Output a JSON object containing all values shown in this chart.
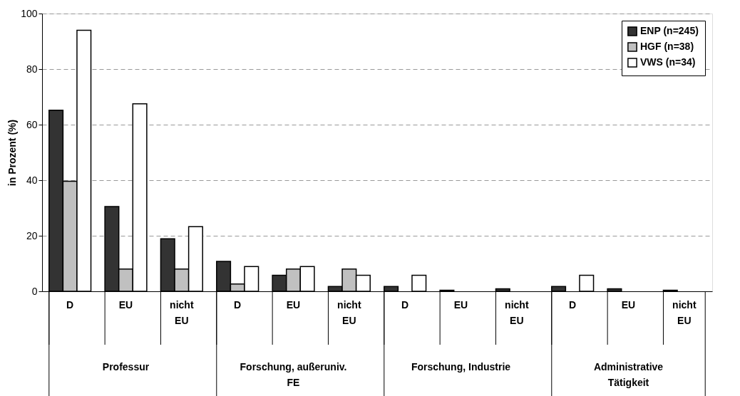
{
  "chart_data": {
    "type": "bar",
    "ylabel": "in Prozent (%)",
    "categories": [
      "D",
      "EU",
      "nicht EU",
      "D",
      "EU",
      "nicht EU",
      "D",
      "EU",
      "nicht EU",
      "D",
      "EU",
      "nicht EU"
    ],
    "annotations": [
      "Professur",
      "Forschung, außeruniv. FE",
      "Forschung, Industrie",
      "Administrative Tätigkeit"
    ],
    "series": [
      {
        "name": "ENP (n=245)",
        "color": "#333333",
        "values": [
          65.2,
          30.5,
          18.9,
          10.8,
          5.8,
          1.7,
          1.7,
          0.4,
          0.9,
          1.7,
          0.9,
          0.4
        ]
      },
      {
        "name": "HGF (n=38)",
        "color": "#c0c0c0",
        "values": [
          39.6,
          8.0,
          8.0,
          2.6,
          8.0,
          8.0,
          null,
          null,
          null,
          null,
          null,
          null
        ]
      },
      {
        "name": "VWS (n=34)",
        "color": "#ffffff",
        "values": [
          94.0,
          67.5,
          23.3,
          8.9,
          8.9,
          5.8,
          5.8,
          null,
          null,
          5.8,
          null,
          null
        ]
      }
    ],
    "ylim": [
      0,
      100
    ],
    "yticks": [
      0,
      20,
      40,
      60,
      80,
      100
    ],
    "grid": "y",
    "legend": "top right"
  }
}
